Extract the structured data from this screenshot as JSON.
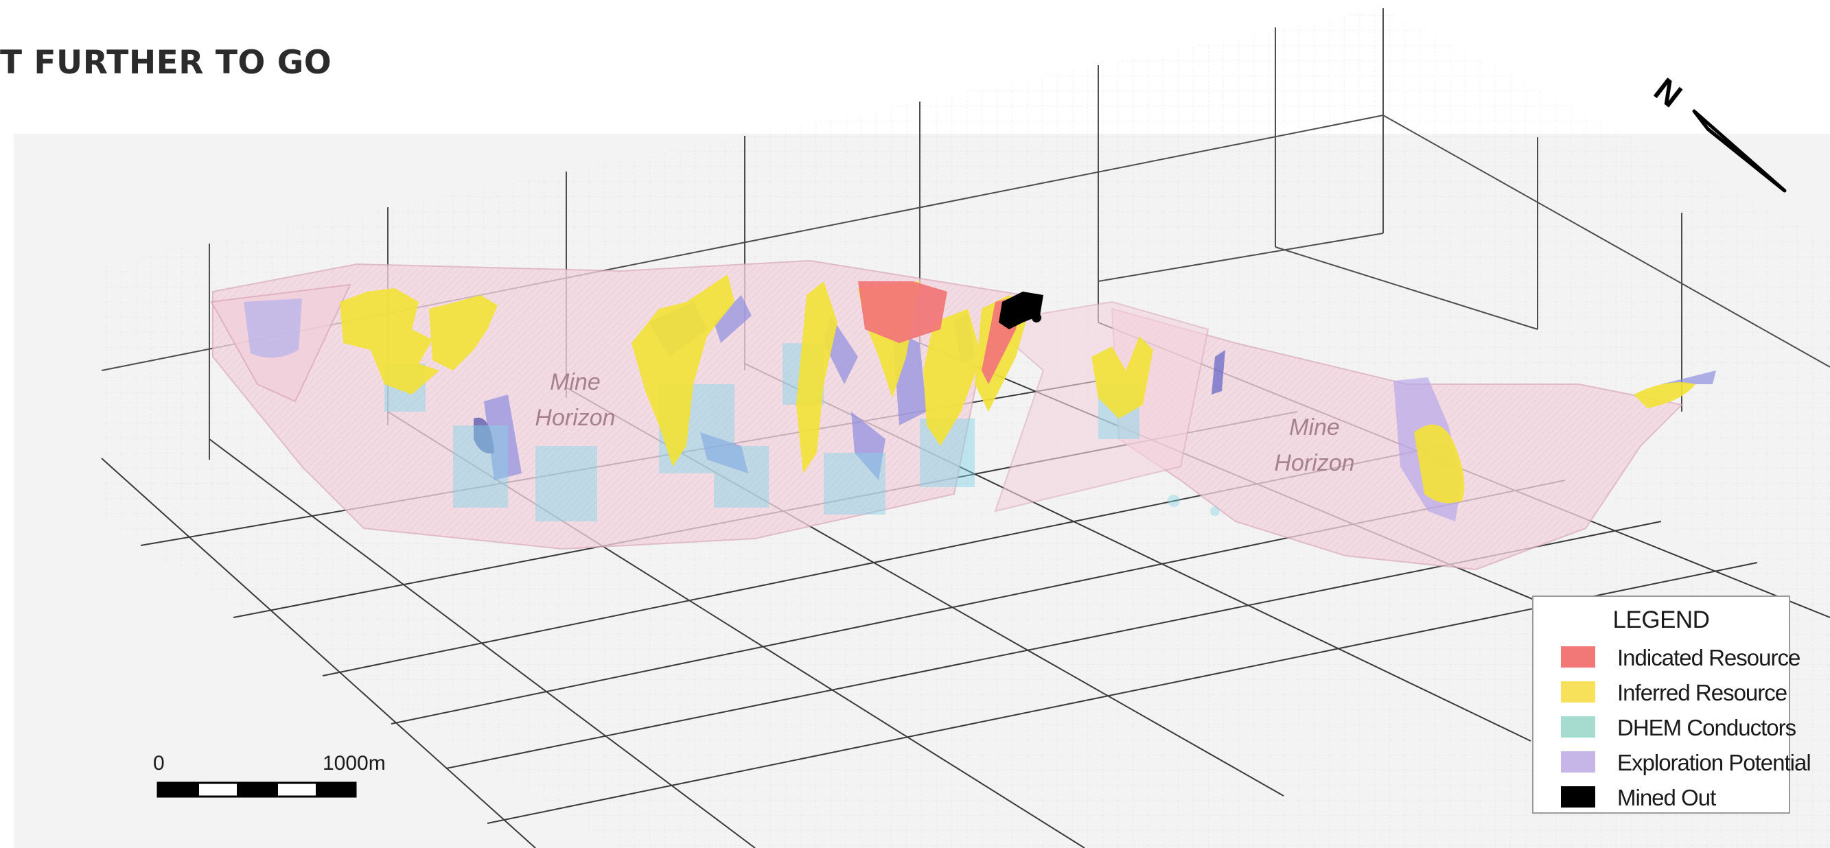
{
  "headline": "T FURTHER TO GO",
  "horizon_labels": [
    {
      "line1": "Mine",
      "line2": "Horizon"
    },
    {
      "line1": "Mine",
      "line2": "Horizon"
    }
  ],
  "north_arrow": {
    "label": "N"
  },
  "scale_bar": {
    "start_label": "0",
    "end_label": "1000m"
  },
  "legend": {
    "title": "LEGEND",
    "items": [
      {
        "label": "Indicated Resource",
        "color": "#f27878"
      },
      {
        "label": "Inferred Resource",
        "color": "#f7e05a"
      },
      {
        "label": "DHEM Conductors",
        "color": "#a6dccf"
      },
      {
        "label": "Exploration Potential",
        "color": "#c6b6e8"
      },
      {
        "label": "Mined Out",
        "color": "#000000"
      }
    ]
  },
  "colors": {
    "horizon_fill": "#f3d3de",
    "indicated": "#f27878",
    "inferred": "#f2e23a",
    "dhem": "#7fd4e6",
    "exploration": "#8f8ee0",
    "mined_out": "#000000",
    "panel_bg": "#f3f3f3"
  }
}
